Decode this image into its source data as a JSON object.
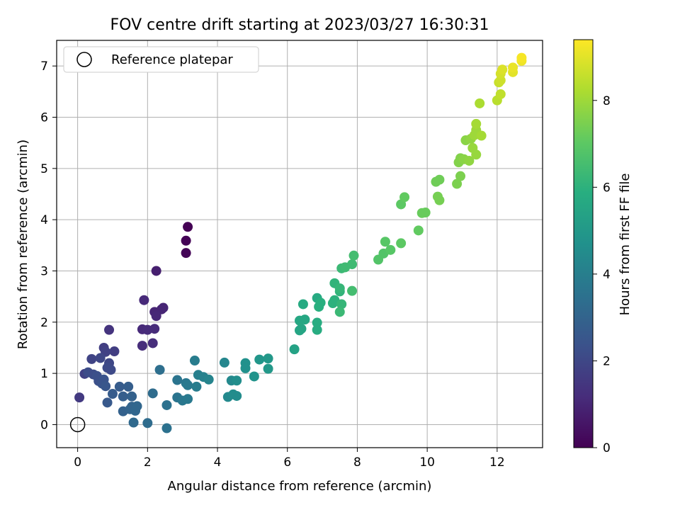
{
  "chart_data": {
    "type": "scatter",
    "title": "FOV centre drift starting at 2023/03/27 16:30:31",
    "xlabel": "Angular distance from reference (arcmin)",
    "ylabel": "Rotation from reference (arcmin)",
    "xlim": [
      -0.6,
      13.3
    ],
    "ylim": [
      -0.45,
      7.5
    ],
    "xticks": [
      0,
      2,
      4,
      6,
      8,
      10,
      12
    ],
    "yticks": [
      0,
      1,
      2,
      3,
      4,
      5,
      6,
      7
    ],
    "grid": true,
    "legend": {
      "placement": "top-left",
      "entries": [
        "Reference platepar"
      ]
    },
    "reference_point": {
      "x": 0,
      "y": 0
    },
    "colorbar": {
      "label": "Hours from first FF file",
      "range": [
        0,
        9.4
      ],
      "ticks": [
        0,
        2,
        4,
        6,
        8
      ],
      "colormap": "viridis"
    },
    "points": [
      {
        "x": 3.15,
        "y": 3.86,
        "h": 0.0
      },
      {
        "x": 3.1,
        "y": 3.59,
        "h": 0.05
      },
      {
        "x": 3.1,
        "y": 3.35,
        "h": 0.1
      },
      {
        "x": 2.25,
        "y": 3.0,
        "h": 0.8
      },
      {
        "x": 2.45,
        "y": 2.28,
        "h": 1.0
      },
      {
        "x": 2.4,
        "y": 2.25,
        "h": 1.0
      },
      {
        "x": 2.2,
        "y": 2.2,
        "h": 1.0
      },
      {
        "x": 2.25,
        "y": 2.12,
        "h": 1.05
      },
      {
        "x": 1.9,
        "y": 2.43,
        "h": 1.1
      },
      {
        "x": 1.85,
        "y": 1.86,
        "h": 1.1
      },
      {
        "x": 2.0,
        "y": 1.85,
        "h": 1.15
      },
      {
        "x": 2.2,
        "y": 1.87,
        "h": 1.15
      },
      {
        "x": 1.85,
        "y": 1.54,
        "h": 1.2
      },
      {
        "x": 2.15,
        "y": 1.59,
        "h": 1.2
      },
      {
        "x": 0.9,
        "y": 1.85,
        "h": 1.4
      },
      {
        "x": 0.05,
        "y": 0.53,
        "h": 1.6
      },
      {
        "x": 1.05,
        "y": 1.43,
        "h": 1.7
      },
      {
        "x": 0.75,
        "y": 1.5,
        "h": 1.7
      },
      {
        "x": 0.8,
        "y": 1.42,
        "h": 1.8
      },
      {
        "x": 0.2,
        "y": 0.99,
        "h": 1.8
      },
      {
        "x": 0.4,
        "y": 1.28,
        "h": 1.9
      },
      {
        "x": 0.65,
        "y": 1.3,
        "h": 2.0
      },
      {
        "x": 0.9,
        "y": 1.2,
        "h": 2.0
      },
      {
        "x": 0.85,
        "y": 1.11,
        "h": 2.1
      },
      {
        "x": 0.95,
        "y": 1.07,
        "h": 2.1
      },
      {
        "x": 0.3,
        "y": 1.02,
        "h": 2.2
      },
      {
        "x": 0.45,
        "y": 0.98,
        "h": 2.2
      },
      {
        "x": 0.55,
        "y": 0.95,
        "h": 2.3
      },
      {
        "x": 0.6,
        "y": 0.85,
        "h": 2.3
      },
      {
        "x": 0.7,
        "y": 0.8,
        "h": 2.4
      },
      {
        "x": 0.75,
        "y": 0.88,
        "h": 2.4
      },
      {
        "x": 0.8,
        "y": 0.75,
        "h": 2.5
      },
      {
        "x": 0.85,
        "y": 0.43,
        "h": 2.6
      },
      {
        "x": 1.0,
        "y": 0.6,
        "h": 2.7
      },
      {
        "x": 1.2,
        "y": 0.74,
        "h": 2.7
      },
      {
        "x": 1.3,
        "y": 0.55,
        "h": 2.8
      },
      {
        "x": 1.45,
        "y": 0.74,
        "h": 2.8
      },
      {
        "x": 1.55,
        "y": 0.55,
        "h": 2.9
      },
      {
        "x": 1.3,
        "y": 0.26,
        "h": 2.9
      },
      {
        "x": 1.55,
        "y": 0.35,
        "h": 3.0
      },
      {
        "x": 1.5,
        "y": 0.3,
        "h": 3.0
      },
      {
        "x": 1.65,
        "y": 0.27,
        "h": 3.1
      },
      {
        "x": 1.7,
        "y": 0.36,
        "h": 3.1
      },
      {
        "x": 1.6,
        "y": 0.04,
        "h": 3.2
      },
      {
        "x": 2.0,
        "y": 0.03,
        "h": 3.3
      },
      {
        "x": 2.15,
        "y": 0.61,
        "h": 3.3
      },
      {
        "x": 2.35,
        "y": 1.07,
        "h": 3.4
      },
      {
        "x": 2.55,
        "y": 0.38,
        "h": 3.5
      },
      {
        "x": 2.55,
        "y": -0.07,
        "h": 3.5
      },
      {
        "x": 2.85,
        "y": 0.87,
        "h": 3.6
      },
      {
        "x": 2.85,
        "y": 0.53,
        "h": 3.6
      },
      {
        "x": 3.0,
        "y": 0.47,
        "h": 3.7
      },
      {
        "x": 3.1,
        "y": 0.81,
        "h": 3.7
      },
      {
        "x": 3.15,
        "y": 0.77,
        "h": 3.8
      },
      {
        "x": 3.15,
        "y": 0.5,
        "h": 3.8
      },
      {
        "x": 3.35,
        "y": 1.25,
        "h": 3.9
      },
      {
        "x": 3.4,
        "y": 0.74,
        "h": 3.9
      },
      {
        "x": 3.45,
        "y": 0.97,
        "h": 4.0
      },
      {
        "x": 3.6,
        "y": 0.93,
        "h": 4.1
      },
      {
        "x": 3.75,
        "y": 0.88,
        "h": 4.2
      },
      {
        "x": 4.2,
        "y": 1.21,
        "h": 4.3
      },
      {
        "x": 4.3,
        "y": 0.54,
        "h": 4.4
      },
      {
        "x": 4.4,
        "y": 0.86,
        "h": 4.4
      },
      {
        "x": 4.45,
        "y": 0.59,
        "h": 4.5
      },
      {
        "x": 4.55,
        "y": 0.56,
        "h": 4.5
      },
      {
        "x": 4.55,
        "y": 0.86,
        "h": 4.6
      },
      {
        "x": 4.8,
        "y": 1.2,
        "h": 4.7
      },
      {
        "x": 4.8,
        "y": 1.1,
        "h": 4.7
      },
      {
        "x": 5.05,
        "y": 0.94,
        "h": 4.8
      },
      {
        "x": 5.2,
        "y": 1.27,
        "h": 4.9
      },
      {
        "x": 5.45,
        "y": 1.29,
        "h": 5.0
      },
      {
        "x": 5.45,
        "y": 1.09,
        "h": 5.0
      },
      {
        "x": 6.2,
        "y": 1.47,
        "h": 5.4
      },
      {
        "x": 6.35,
        "y": 1.84,
        "h": 5.5
      },
      {
        "x": 6.4,
        "y": 1.87,
        "h": 5.5
      },
      {
        "x": 6.35,
        "y": 2.03,
        "h": 5.6
      },
      {
        "x": 6.5,
        "y": 2.05,
        "h": 5.6
      },
      {
        "x": 6.45,
        "y": 2.35,
        "h": 5.7
      },
      {
        "x": 6.85,
        "y": 2.47,
        "h": 5.7
      },
      {
        "x": 6.85,
        "y": 1.99,
        "h": 5.8
      },
      {
        "x": 6.85,
        "y": 1.85,
        "h": 5.8
      },
      {
        "x": 6.9,
        "y": 2.3,
        "h": 5.9
      },
      {
        "x": 6.95,
        "y": 2.38,
        "h": 5.9
      },
      {
        "x": 7.3,
        "y": 2.37,
        "h": 6.0
      },
      {
        "x": 7.35,
        "y": 2.43,
        "h": 6.0
      },
      {
        "x": 7.35,
        "y": 2.76,
        "h": 6.1
      },
      {
        "x": 7.5,
        "y": 2.6,
        "h": 6.1
      },
      {
        "x": 7.5,
        "y": 2.66,
        "h": 6.2
      },
      {
        "x": 7.55,
        "y": 2.35,
        "h": 6.2
      },
      {
        "x": 7.5,
        "y": 2.2,
        "h": 6.3
      },
      {
        "x": 7.55,
        "y": 3.05,
        "h": 6.3
      },
      {
        "x": 7.65,
        "y": 3.07,
        "h": 6.4
      },
      {
        "x": 7.85,
        "y": 3.13,
        "h": 6.4
      },
      {
        "x": 7.85,
        "y": 2.61,
        "h": 6.5
      },
      {
        "x": 7.9,
        "y": 3.3,
        "h": 6.5
      },
      {
        "x": 8.6,
        "y": 3.22,
        "h": 6.8
      },
      {
        "x": 8.75,
        "y": 3.34,
        "h": 6.8
      },
      {
        "x": 8.8,
        "y": 3.57,
        "h": 6.9
      },
      {
        "x": 8.95,
        "y": 3.41,
        "h": 6.9
      },
      {
        "x": 9.25,
        "y": 3.54,
        "h": 7.0
      },
      {
        "x": 9.25,
        "y": 4.3,
        "h": 7.0
      },
      {
        "x": 9.35,
        "y": 4.44,
        "h": 7.1
      },
      {
        "x": 9.75,
        "y": 3.79,
        "h": 7.1
      },
      {
        "x": 9.85,
        "y": 4.13,
        "h": 7.2
      },
      {
        "x": 9.95,
        "y": 4.14,
        "h": 7.2
      },
      {
        "x": 10.25,
        "y": 4.74,
        "h": 7.3
      },
      {
        "x": 10.35,
        "y": 4.78,
        "h": 7.3
      },
      {
        "x": 10.3,
        "y": 4.45,
        "h": 7.4
      },
      {
        "x": 10.35,
        "y": 4.38,
        "h": 7.4
      },
      {
        "x": 10.85,
        "y": 4.7,
        "h": 7.5
      },
      {
        "x": 10.95,
        "y": 4.85,
        "h": 7.5
      },
      {
        "x": 10.9,
        "y": 5.12,
        "h": 7.6
      },
      {
        "x": 10.95,
        "y": 5.2,
        "h": 7.6
      },
      {
        "x": 11.05,
        "y": 5.18,
        "h": 7.7
      },
      {
        "x": 11.1,
        "y": 5.55,
        "h": 7.7
      },
      {
        "x": 11.2,
        "y": 5.15,
        "h": 7.8
      },
      {
        "x": 11.25,
        "y": 5.58,
        "h": 7.8
      },
      {
        "x": 11.3,
        "y": 5.4,
        "h": 7.9
      },
      {
        "x": 11.4,
        "y": 5.27,
        "h": 7.9
      },
      {
        "x": 11.35,
        "y": 5.65,
        "h": 8.0
      },
      {
        "x": 11.4,
        "y": 5.75,
        "h": 8.0
      },
      {
        "x": 11.4,
        "y": 5.87,
        "h": 8.1
      },
      {
        "x": 11.55,
        "y": 5.64,
        "h": 8.1
      },
      {
        "x": 11.5,
        "y": 6.27,
        "h": 8.2
      },
      {
        "x": 12.0,
        "y": 6.33,
        "h": 8.4
      },
      {
        "x": 12.1,
        "y": 6.45,
        "h": 8.5
      },
      {
        "x": 12.05,
        "y": 6.68,
        "h": 8.6
      },
      {
        "x": 12.1,
        "y": 6.72,
        "h": 8.7
      },
      {
        "x": 12.1,
        "y": 6.85,
        "h": 8.8
      },
      {
        "x": 12.15,
        "y": 6.93,
        "h": 8.9
      },
      {
        "x": 12.45,
        "y": 6.88,
        "h": 9.0
      },
      {
        "x": 12.45,
        "y": 6.97,
        "h": 9.1
      },
      {
        "x": 12.7,
        "y": 7.1,
        "h": 9.2
      },
      {
        "x": 12.7,
        "y": 7.16,
        "h": 9.3
      }
    ]
  }
}
